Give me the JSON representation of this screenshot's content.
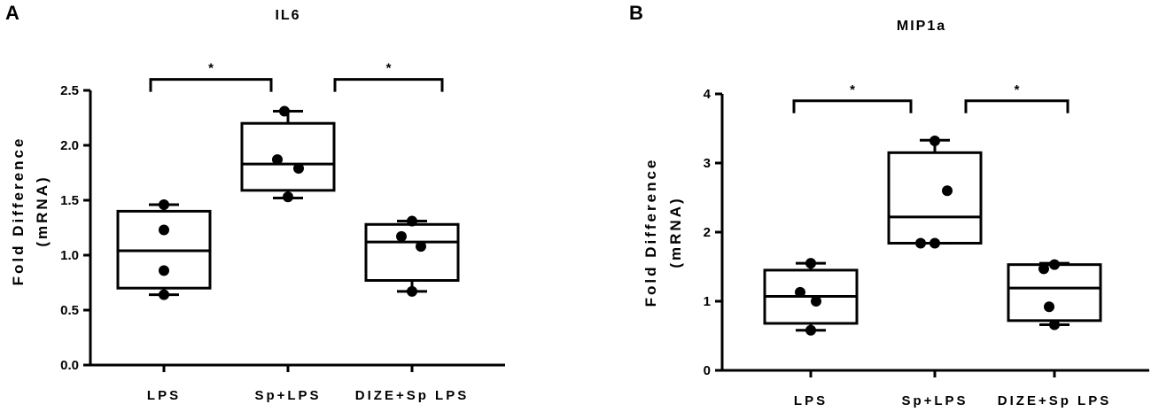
{
  "chart_data": [
    {
      "type": "box",
      "panel_label": "A",
      "title": "IL6",
      "ylabel_line1": "Fold Difference",
      "ylabel_line2": "(mRNA)",
      "ylim": [
        0,
        2.5
      ],
      "yticks": [
        0.0,
        0.5,
        1.0,
        1.5,
        2.0,
        2.5
      ],
      "ytick_labels": [
        "0.0",
        "0.5",
        "1.0",
        "1.5",
        "2.0",
        "2.5"
      ],
      "categories": [
        "LPS",
        "Sp+LPS",
        "DIZE+Sp LPS"
      ],
      "boxes": [
        {
          "min": 0.64,
          "q1": 0.7,
          "median": 1.04,
          "q3": 1.4,
          "max": 1.46
        },
        {
          "min": 1.52,
          "q1": 1.59,
          "median": 1.83,
          "q3": 2.2,
          "max": 2.31
        },
        {
          "min": 0.67,
          "q1": 0.77,
          "median": 1.12,
          "q3": 1.28,
          "max": 1.31
        }
      ],
      "points": [
        [
          1.46,
          1.23,
          0.86,
          0.64
        ],
        [
          2.31,
          1.87,
          1.79,
          1.53
        ],
        [
          1.31,
          1.17,
          1.08,
          0.67
        ]
      ],
      "significance": [
        {
          "from": 0,
          "to": 1,
          "label": "*",
          "level": 2.6
        },
        {
          "from": 1,
          "to": 2,
          "label": "*",
          "level": 2.6
        }
      ]
    },
    {
      "type": "box",
      "panel_label": "B",
      "title": "MIP1a",
      "ylabel_line1": "Fold Difference",
      "ylabel_line2": "(mRNA)",
      "ylim": [
        0,
        4
      ],
      "yticks": [
        0,
        1,
        2,
        3,
        4
      ],
      "ytick_labels": [
        "0",
        "1",
        "2",
        "3",
        "4"
      ],
      "categories": [
        "LPS",
        "Sp+LPS",
        "DIZE+Sp LPS"
      ],
      "boxes": [
        {
          "min": 0.58,
          "q1": 0.68,
          "median": 1.07,
          "q3": 1.45,
          "max": 1.55
        },
        {
          "min": 1.84,
          "q1": 1.84,
          "median": 2.22,
          "q3": 3.15,
          "max": 3.33
        },
        {
          "min": 0.66,
          "q1": 0.72,
          "median": 1.19,
          "q3": 1.53,
          "max": 1.55
        }
      ],
      "points": [
        [
          1.55,
          1.13,
          1.0,
          0.58
        ],
        [
          3.32,
          2.6,
          1.84,
          1.84
        ],
        [
          1.53,
          1.47,
          0.92,
          0.66
        ]
      ],
      "significance": [
        {
          "from": 0,
          "to": 1,
          "label": "*",
          "level": 3.9
        },
        {
          "from": 1,
          "to": 2,
          "label": "*",
          "level": 3.9
        }
      ]
    }
  ]
}
